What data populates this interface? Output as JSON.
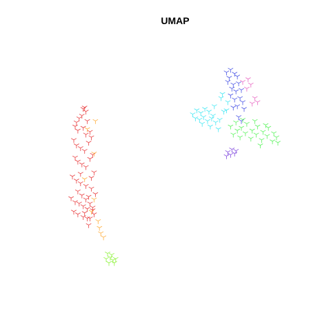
{
  "chart_data": {
    "type": "scatter",
    "title": "UMAP",
    "xlabel": "",
    "ylabel": "",
    "xlim": [
      -10,
      10
    ],
    "ylim": [
      -10,
      10
    ],
    "grid": false,
    "axes_visible": false,
    "legend": "none",
    "marker": "tri-down",
    "series": [
      {
        "color": "#e41a1c",
        "x": [
          -6.8,
          -6.7,
          -6.6,
          -6.9,
          -7.1,
          -6.5,
          -7.3,
          -7.4,
          -7.2,
          -6.3,
          -6.2,
          -6.4,
          -7.5,
          -7.3,
          -7.0,
          -6.7,
          -6.1,
          -6.3,
          -7.4,
          -7.2,
          -6.9,
          -6.6,
          -6.0,
          -6.2,
          -7.6,
          -7.3,
          -7.0,
          -6.6,
          -6.2,
          -5.9,
          -6.4,
          -7.7,
          -7.4,
          -7.1,
          -6.8,
          -6.5,
          -6.1,
          -6.0,
          -7.2,
          -6.9,
          -6.6,
          -6.3,
          -6.1,
          -6.7,
          -6.5,
          -6.4,
          -7.5,
          -7.2,
          -6.8,
          -6.3,
          -7.0,
          -6.8,
          -6.6
        ],
        "y": [
          4.5,
          4.6,
          4.3,
          4.0,
          3.8,
          3.6,
          3.5,
          3.2,
          2.9,
          2.8,
          2.4,
          2.0,
          2.2,
          1.8,
          1.6,
          1.4,
          1.1,
          0.8,
          0.9,
          0.6,
          0.4,
          0.2,
          -0.2,
          -0.6,
          -0.5,
          -0.8,
          -1.0,
          -1.2,
          -1.4,
          -1.8,
          -2.0,
          -2.1,
          -2.4,
          -2.5,
          -2.7,
          -2.9,
          -3.0,
          -3.3,
          -1.6,
          -1.9,
          -2.2,
          -2.5,
          -2.8,
          -3.2,
          -3.6,
          -4.1,
          -3.1,
          -3.3,
          -3.5,
          -3.6,
          -0.3,
          3.1,
          2.6
        ]
      },
      {
        "color": "#ff9f1a",
        "x": [
          -5.9,
          -6.5,
          -6.0,
          -6.7,
          -6.2,
          -5.7,
          -5.6,
          -5.5,
          -5.3,
          -6.0
        ],
        "y": [
          3.6,
          3.0,
          1.2,
          -0.7,
          -3.1,
          -3.8,
          -4.3,
          -4.7,
          -5.0,
          -2.2
        ]
      },
      {
        "color": "#7cf01c",
        "x": [
          -5.0,
          -4.8,
          -4.6,
          -4.9,
          -4.4,
          -4.7,
          -5.1,
          -4.5
        ],
        "y": [
          -6.2,
          -6.5,
          -6.7,
          -6.9,
          -6.6,
          -6.3,
          -6.6,
          -6.9
        ]
      },
      {
        "color": "#2836e0",
        "x": [
          3.8,
          4.1,
          4.4,
          4.0,
          4.6,
          3.9,
          4.3,
          4.7,
          4.2,
          4.5,
          4.9,
          4.1,
          4.8,
          4.4,
          5.0,
          4.6,
          4.3,
          5.1,
          4.7,
          4.9
        ],
        "y": [
          7.2,
          7.4,
          7.1,
          6.8,
          6.9,
          6.5,
          6.3,
          6.4,
          6.0,
          5.8,
          5.9,
          5.5,
          5.3,
          5.2,
          5.0,
          4.7,
          4.6,
          4.5,
          3.9,
          3.6
        ]
      },
      {
        "color": "#22e3f2",
        "x": [
          1.3,
          1.6,
          1.9,
          2.2,
          2.5,
          2.8,
          1.5,
          1.8,
          2.1,
          2.4,
          2.7,
          3.0,
          3.3,
          3.6,
          3.9,
          2.0,
          2.6,
          3.2,
          3.5,
          3.8,
          2.9,
          3.4
        ],
        "y": [
          4.1,
          4.4,
          4.2,
          4.5,
          4.3,
          4.0,
          3.8,
          3.7,
          3.9,
          3.6,
          3.8,
          3.5,
          3.7,
          4.3,
          5.0,
          3.4,
          3.2,
          3.0,
          5.6,
          4.4,
          4.7,
          5.3
        ]
      },
      {
        "color": "#3cf040",
        "x": [
          4.1,
          4.5,
          4.9,
          5.3,
          5.7,
          6.1,
          6.5,
          6.9,
          7.3,
          4.3,
          4.8,
          5.2,
          5.6,
          6.0,
          6.4,
          6.8,
          7.2,
          7.5,
          5.0,
          5.9,
          6.7,
          7.6,
          6.3,
          4.6
        ],
        "y": [
          3.2,
          3.5,
          3.1,
          3.4,
          2.9,
          3.2,
          2.8,
          3.1,
          2.7,
          2.6,
          2.4,
          2.7,
          2.3,
          2.6,
          2.2,
          2.5,
          2.1,
          2.4,
          3.7,
          3.6,
          3.3,
          2.0,
          1.8,
          2.9
        ]
      },
      {
        "color": "#e44bb8",
        "x": [
          5.0,
          5.4,
          5.6,
          5.3,
          5.9,
          6.1,
          5.7
        ],
        "y": [
          6.5,
          6.7,
          6.3,
          6.0,
          5.3,
          5.0,
          4.9
        ]
      },
      {
        "color": "#6a28d8",
        "x": [
          3.9,
          4.2,
          4.5,
          4.1,
          3.8,
          4.4
        ],
        "y": [
          1.3,
          1.5,
          1.4,
          1.1,
          1.0,
          1.2
        ]
      }
    ]
  }
}
